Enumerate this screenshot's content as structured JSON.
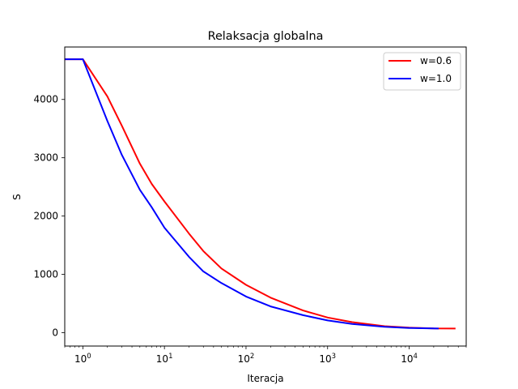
{
  "chart_data": {
    "type": "line",
    "title": "Relaksacja globalna",
    "xlabel": "Iteracja",
    "ylabel": "S",
    "xscale": "log",
    "xlim": [
      0.6,
      50000
    ],
    "ylim": [
      -230,
      4900
    ],
    "yticks": [
      0,
      1000,
      2000,
      3000,
      4000
    ],
    "xticks": [
      {
        "value": 1,
        "base": "10",
        "exp": "0"
      },
      {
        "value": 10,
        "base": "10",
        "exp": "1"
      },
      {
        "value": 100,
        "base": "10",
        "exp": "2"
      },
      {
        "value": 1000,
        "base": "10",
        "exp": "3"
      },
      {
        "value": 10000,
        "base": "10",
        "exp": "4"
      }
    ],
    "grid": false,
    "legend_position": "top-right",
    "series": [
      {
        "name": "w=0.6",
        "color": "#ff0000",
        "x": [
          0.6,
          1,
          2,
          3,
          5,
          7,
          10,
          20,
          30,
          50,
          100,
          200,
          500,
          1000,
          2000,
          5000,
          10000,
          20000,
          37000
        ],
        "y": [
          4690,
          4690,
          4050,
          3550,
          2900,
          2550,
          2250,
          1700,
          1400,
          1100,
          820,
          600,
          380,
          260,
          180,
          110,
          85,
          72,
          70
        ]
      },
      {
        "name": "w=1.0",
        "color": "#0000ff",
        "x": [
          0.6,
          1,
          2,
          3,
          5,
          7,
          10,
          20,
          30,
          50,
          100,
          200,
          500,
          1000,
          2000,
          5000,
          10000,
          23000
        ],
        "y": [
          4690,
          4690,
          3630,
          3050,
          2450,
          2150,
          1800,
          1300,
          1050,
          850,
          620,
          450,
          300,
          210,
          150,
          100,
          80,
          70
        ]
      }
    ]
  }
}
